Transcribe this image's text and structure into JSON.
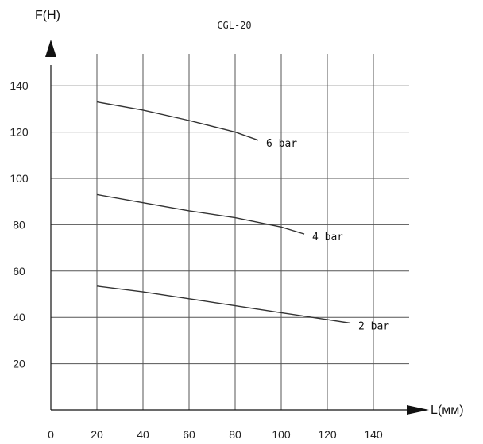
{
  "chart_data": {
    "type": "line",
    "title": "CGL-20",
    "xlabel": "L(мм)",
    "ylabel": "F(H)",
    "x_ticks": [
      "0",
      "20",
      "40",
      "60",
      "80",
      "100",
      "120",
      "140"
    ],
    "y_ticks": [
      "20",
      "40",
      "60",
      "80",
      "100",
      "120",
      "140"
    ],
    "xlim": [
      0,
      150
    ],
    "ylim": [
      0,
      150
    ],
    "grid": true,
    "legend": "none",
    "series": [
      {
        "name": "6 bar",
        "x": [
          20,
          40,
          60,
          80,
          90
        ],
        "y": [
          133,
          129.5,
          125,
          120,
          116.5
        ]
      },
      {
        "name": "4 bar",
        "x": [
          20,
          40,
          60,
          80,
          100,
          110
        ],
        "y": [
          93,
          89.5,
          86,
          83,
          79,
          76
        ]
      },
      {
        "name": "2 bar",
        "x": [
          20,
          40,
          60,
          80,
          100,
          120,
          130
        ],
        "y": [
          53.5,
          51,
          48,
          45,
          42,
          39,
          37.5
        ]
      }
    ]
  }
}
